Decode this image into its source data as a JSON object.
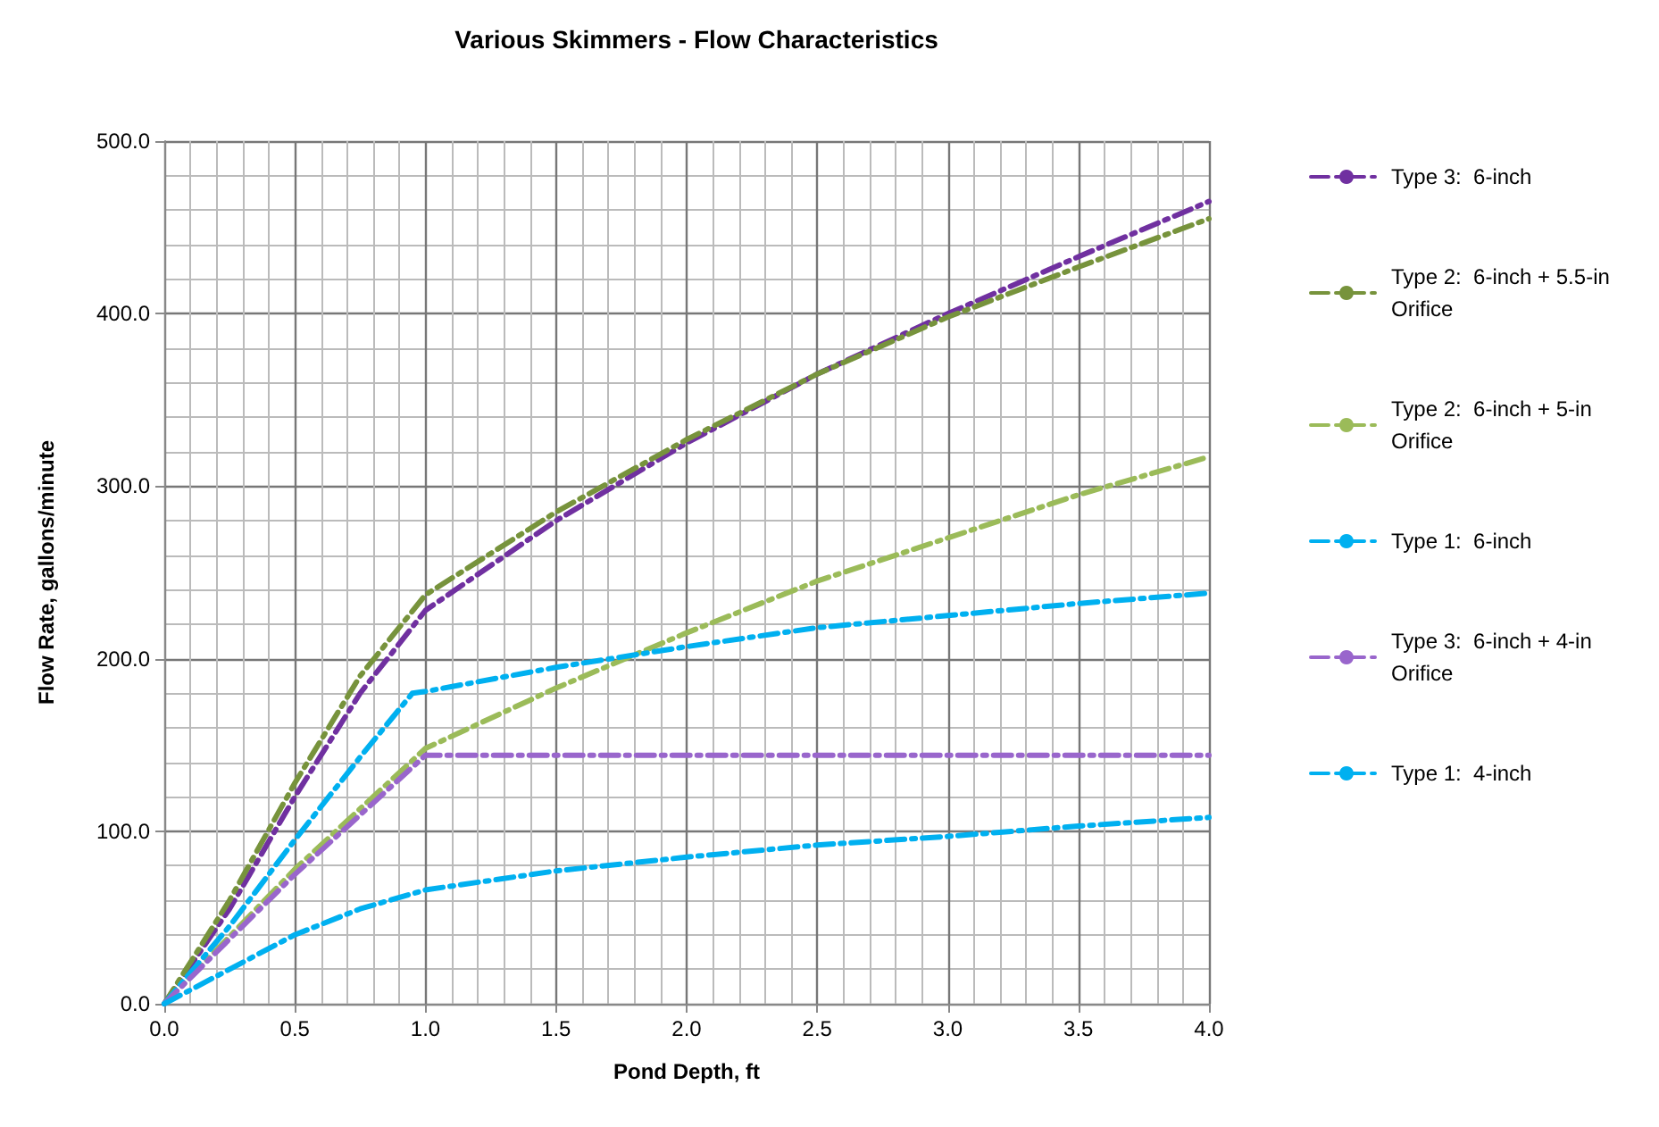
{
  "chart_data": {
    "type": "line",
    "title": "Various Skimmers - Flow Characteristics",
    "xlabel": "Pond Depth, ft",
    "ylabel": "Flow Rate, gallons/minute",
    "xlim": [
      0,
      4
    ],
    "xticks": [
      {
        "value": 0,
        "label": "0.0"
      },
      {
        "value": 0.5,
        "label": "0.5"
      },
      {
        "value": 1,
        "label": "1.0"
      },
      {
        "value": 1.5,
        "label": "1.5"
      },
      {
        "value": 2,
        "label": "2.0"
      },
      {
        "value": 2.5,
        "label": "2.5"
      },
      {
        "value": 3,
        "label": "3.0"
      },
      {
        "value": 3.5,
        "label": "3.5"
      },
      {
        "value": 4,
        "label": "4.0"
      }
    ],
    "ylim": [
      0,
      500
    ],
    "yticks": [
      {
        "value": 0,
        "label": "0.0"
      },
      {
        "value": 100,
        "label": "100.0"
      },
      {
        "value": 200,
        "label": "200.0"
      },
      {
        "value": 300,
        "label": "300.0"
      },
      {
        "value": 400,
        "label": "400.0"
      },
      {
        "value": 500,
        "label": "500.0"
      }
    ],
    "grid": true,
    "legend": "right",
    "marker": "none",
    "line_style": "dashed",
    "series": [
      {
        "name": "Type 3:  6-inch",
        "color": "#7030a0",
        "x": [
          0,
          0.25,
          0.5,
          0.75,
          1,
          1.5,
          2,
          2.5,
          3,
          3.5,
          4
        ],
        "values": [
          0,
          55,
          120,
          180,
          228,
          280,
          325,
          365,
          400,
          433,
          465
        ]
      },
      {
        "name": "Type 2:  6-inch + 5.5-in Orifice",
        "color": "#77933c",
        "x": [
          0,
          0.25,
          0.5,
          0.75,
          1,
          1.5,
          2,
          2.5,
          3,
          3.5,
          4
        ],
        "values": [
          0,
          60,
          128,
          190,
          237,
          285,
          327,
          365,
          398,
          427,
          455
        ]
      },
      {
        "name": "Type 2:  6-inch + 5-in Orifice",
        "color": "#9bbb59",
        "x": [
          0,
          0.5,
          1,
          1.5,
          2,
          2.5,
          3,
          3.5,
          4
        ],
        "values": [
          0,
          78,
          148,
          183,
          215,
          245,
          270,
          295,
          317
        ]
      },
      {
        "name": "Type 1:  6-inch",
        "color": "#00b0f0",
        "x": [
          0,
          0.25,
          0.5,
          0.75,
          0.95,
          1,
          1.5,
          2,
          2.5,
          3,
          3.5,
          4
        ],
        "values": [
          0,
          45,
          95,
          143,
          180,
          181,
          195,
          207,
          218,
          225,
          232,
          238
        ]
      },
      {
        "name": "Type 3:  6-inch + 4-in Orifice",
        "color": "#9966cc",
        "x": [
          0,
          0.5,
          1,
          4
        ],
        "values": [
          0,
          75,
          144,
          144
        ]
      },
      {
        "name": "Type 1:  4-inch",
        "color": "#00b0f0",
        "x": [
          0,
          0.25,
          0.5,
          0.75,
          1,
          1.5,
          2,
          2.5,
          3,
          3.5,
          4
        ],
        "values": [
          0,
          20,
          40,
          55,
          66,
          77,
          85,
          92,
          97,
          103,
          108
        ]
      }
    ]
  }
}
